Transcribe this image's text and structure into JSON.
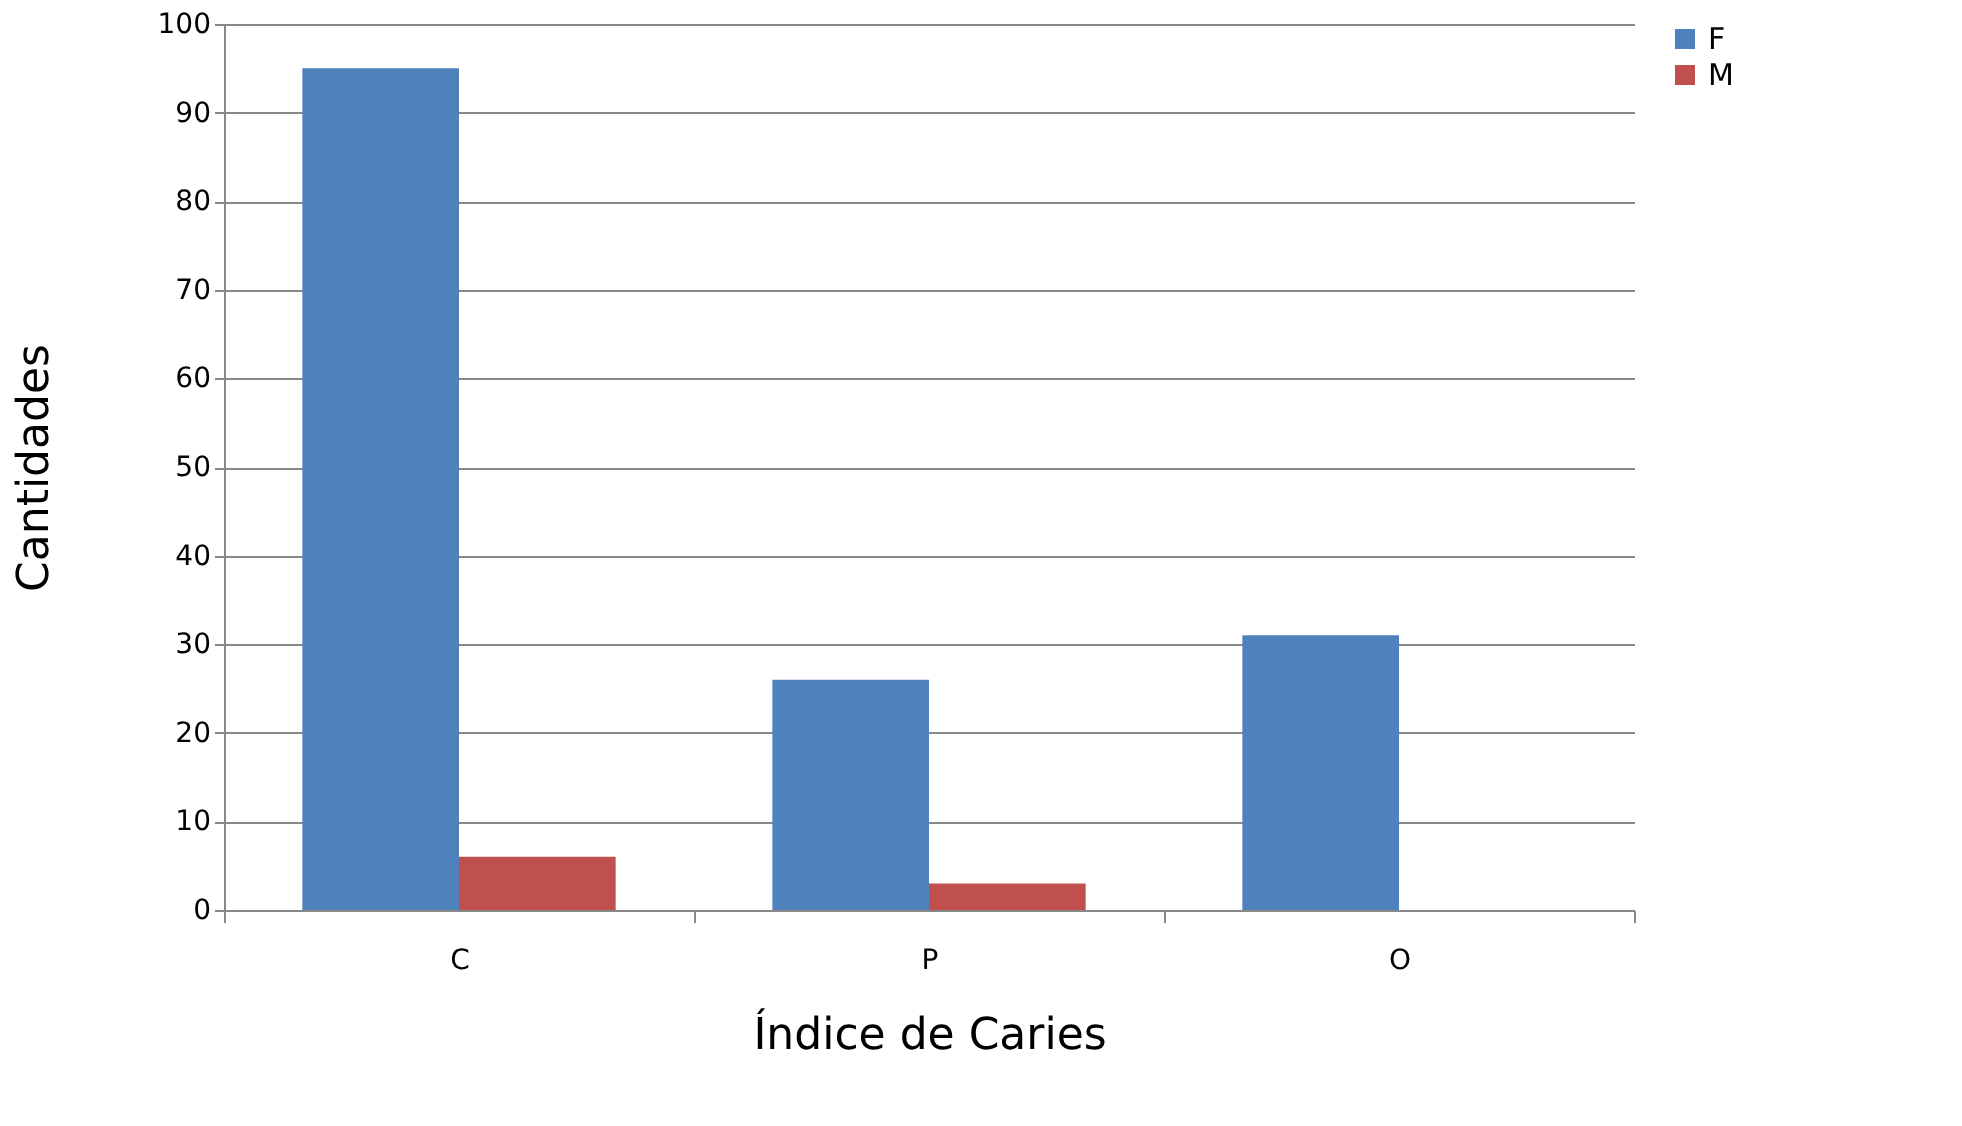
{
  "chart_data": {
    "type": "bar",
    "xlabel": "Índice de Caries",
    "ylabel": "Cantidades",
    "categories": [
      "C",
      "P",
      "O"
    ],
    "series": [
      {
        "name": "F",
        "color": "#4f81bd",
        "values": [
          95,
          26,
          31
        ]
      },
      {
        "name": "M",
        "color": "#c0504d",
        "values": [
          6,
          3,
          0
        ]
      }
    ],
    "ylim": [
      0,
      100
    ],
    "yticks": [
      0,
      10,
      20,
      30,
      40,
      50,
      60,
      70,
      80,
      90,
      100
    ],
    "grid": "y",
    "legend": "right"
  }
}
